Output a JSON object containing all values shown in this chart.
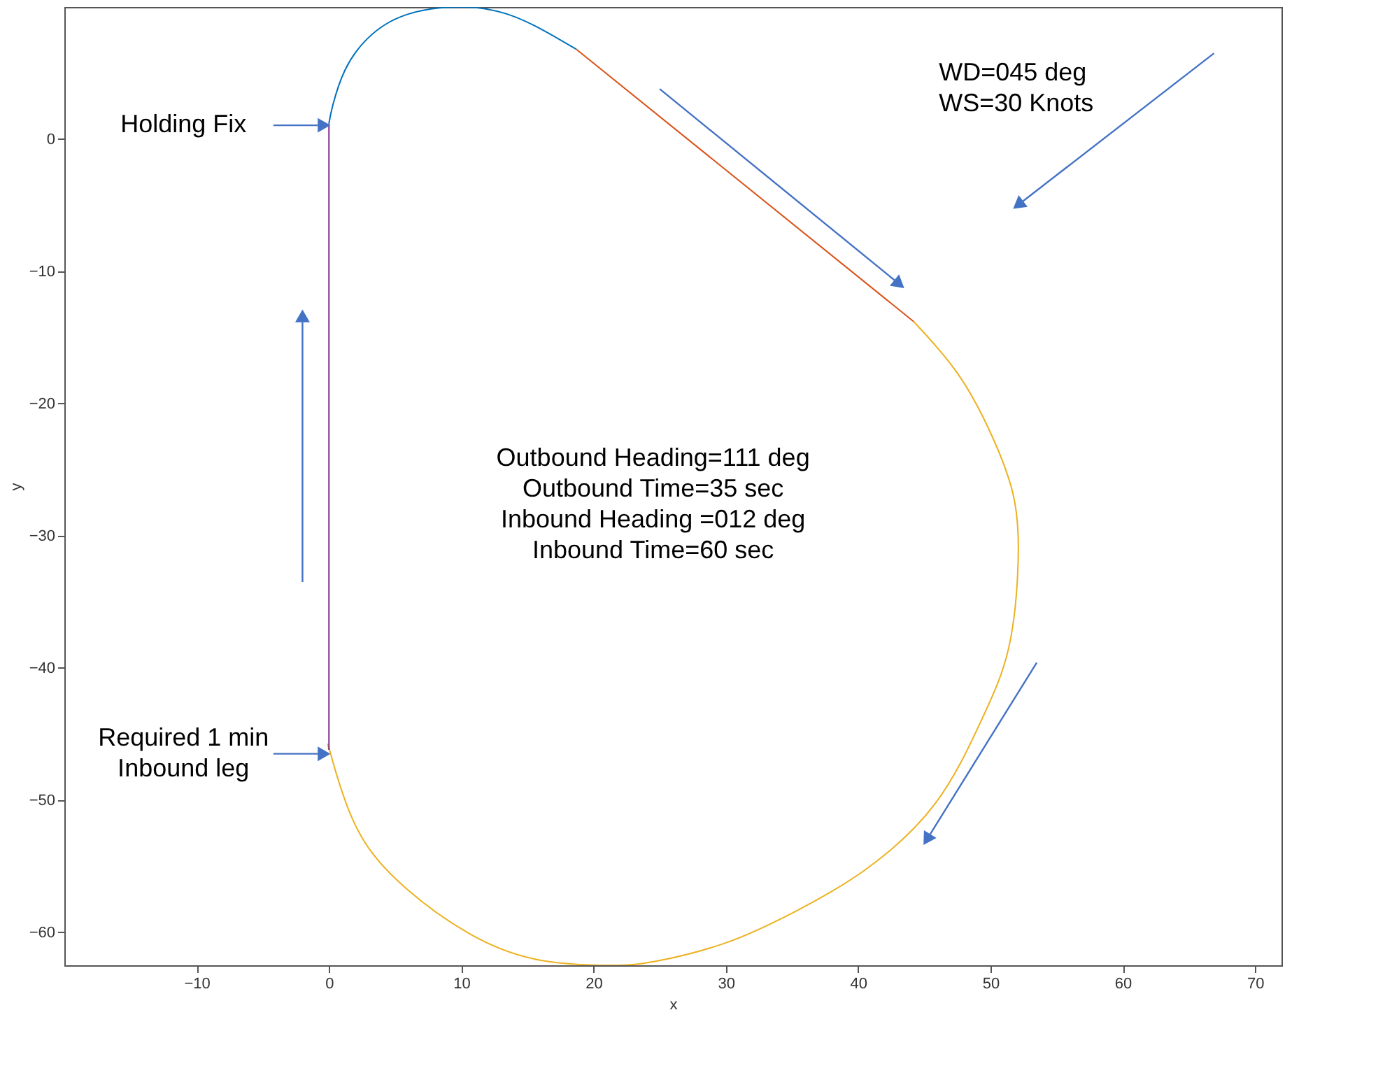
{
  "chart_data": {
    "type": "line",
    "xlabel": "x",
    "ylabel": "y",
    "xlim": [
      -20,
      72
    ],
    "ylim": [
      -62.5,
      10
    ],
    "xticks": [
      -10,
      0,
      10,
      20,
      30,
      40,
      50,
      60,
      70
    ],
    "yticks": [
      -60,
      -50,
      -40,
      -30,
      -20,
      -10,
      0
    ],
    "grid": false,
    "series": [
      {
        "color": "#0072bd",
        "x": [
          0,
          0.3,
          1.2,
          2.9,
          5.8,
          10.1,
          14.2,
          18.7
        ],
        "values": [
          1.2,
          2.6,
          5.2,
          7.6,
          9.4,
          10,
          9.2,
          6.8
        ]
      },
      {
        "color": "#d95319",
        "x": [
          18.7,
          44.2
        ],
        "values": [
          6.8,
          -13.8
        ]
      },
      {
        "color": "#edb120",
        "x": [
          44.2,
          47.5,
          50,
          51.7,
          52.1,
          51.4,
          49.3,
          45.8,
          40.5,
          35.3,
          30,
          24.7,
          21.2,
          15.9,
          10.6,
          5.4,
          1.9,
          0.1,
          0
        ],
        "values": [
          -13.8,
          -17.7,
          -22.2,
          -26.8,
          -31.7,
          -38.4,
          -44,
          -50.3,
          -55.3,
          -58.4,
          -60.8,
          -62.2,
          -62.5,
          -62.1,
          -60.1,
          -56.3,
          -51.7,
          -46.4,
          -46.2
        ]
      },
      {
        "color": "#7e2f8e",
        "x": [
          0,
          0
        ],
        "values": [
          -46.2,
          1.2
        ]
      }
    ],
    "annotations": [
      {
        "text": "Holding Fix",
        "x": 0,
        "y": 1.05
      },
      {
        "text": "Required 1 min\nInbound leg",
        "x": 0,
        "y": -46.5
      },
      "WD=045 deg\nWS=30 Knots",
      "Outbound Heading=111 deg\nOutbound Time=35 sec\nInbound Heading =012 deg\nInbound Time=60 sec"
    ]
  }
}
